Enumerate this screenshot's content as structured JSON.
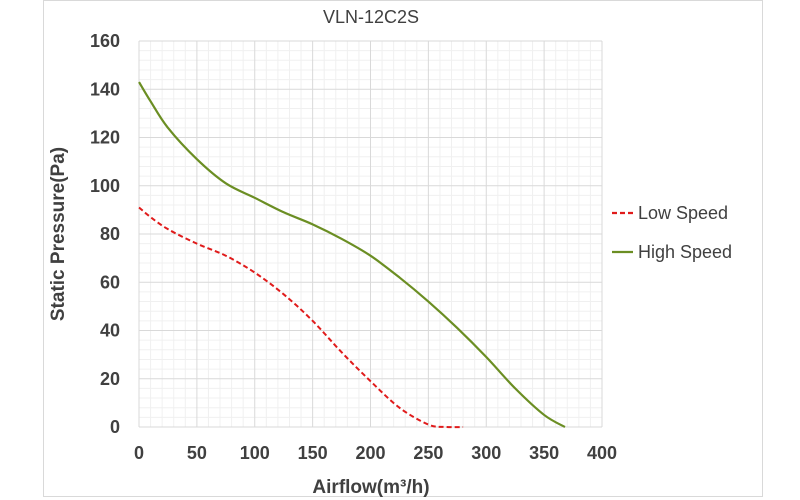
{
  "chart_data": {
    "type": "line",
    "title": "VLN-12C2S",
    "xlabel": "Airflow(m³/h)",
    "ylabel": "Static Pressure(Pa)",
    "xlim": [
      0,
      400
    ],
    "ylim": [
      0,
      160
    ],
    "x_ticks": [
      "0",
      "50",
      "100",
      "150",
      "200",
      "250",
      "300",
      "350",
      "400"
    ],
    "y_ticks": [
      "0",
      "20",
      "40",
      "60",
      "80",
      "100",
      "120",
      "140",
      "160"
    ],
    "grid": true,
    "legend_position": "right",
    "series": [
      {
        "name": "Low Speed",
        "color": "#e01b1b",
        "style": "dashed",
        "points": [
          [
            0,
            91
          ],
          [
            10,
            87
          ],
          [
            25,
            82
          ],
          [
            50,
            76
          ],
          [
            75,
            71
          ],
          [
            100,
            64
          ],
          [
            125,
            55
          ],
          [
            150,
            44
          ],
          [
            175,
            31
          ],
          [
            200,
            19
          ],
          [
            225,
            8
          ],
          [
            250,
            1
          ],
          [
            265,
            0
          ],
          [
            280,
            0
          ]
        ]
      },
      {
        "name": "High Speed",
        "color": "#6b8e23",
        "style": "solid",
        "points": [
          [
            0,
            143
          ],
          [
            10,
            135
          ],
          [
            25,
            124
          ],
          [
            50,
            111
          ],
          [
            75,
            101
          ],
          [
            100,
            95
          ],
          [
            125,
            89
          ],
          [
            150,
            84
          ],
          [
            175,
            78
          ],
          [
            200,
            71
          ],
          [
            225,
            62
          ],
          [
            250,
            52
          ],
          [
            275,
            41
          ],
          [
            300,
            29
          ],
          [
            325,
            16
          ],
          [
            350,
            5
          ],
          [
            368,
            0
          ]
        ]
      }
    ]
  }
}
